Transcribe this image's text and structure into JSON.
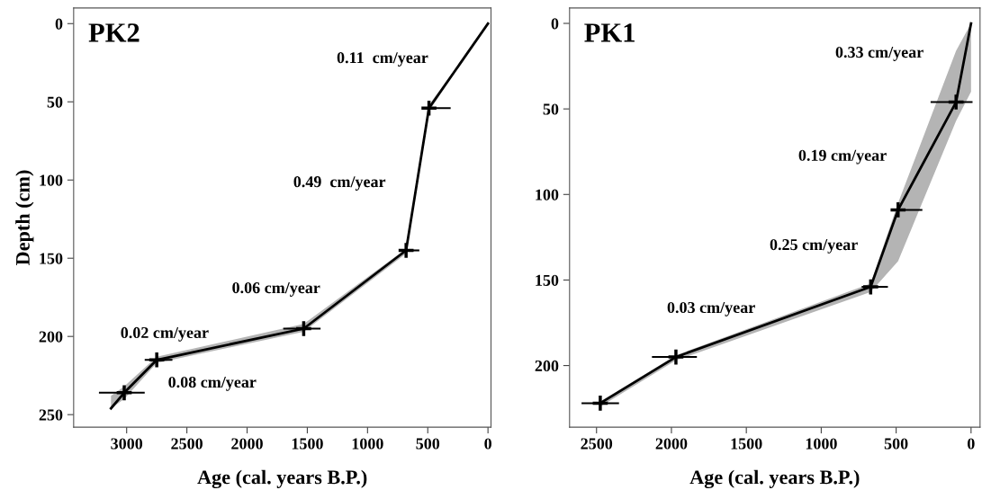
{
  "chart_data": [
    {
      "type": "line",
      "title": "PK2",
      "xlabel": "Age (cal. years B.P.)",
      "ylabel": "Depth (cm)",
      "xlim": [
        3440,
        -25
      ],
      "ylim": [
        258,
        -10
      ],
      "xticks": [
        3000,
        2500,
        2000,
        1500,
        1000,
        500,
        0
      ],
      "yticks": [
        0,
        50,
        100,
        150,
        200,
        250
      ],
      "grid": false,
      "legend": false,
      "marker": "cross",
      "line_style": "solid",
      "series": [
        {
          "color": "#000000",
          "x": [
            0,
            490,
            680,
            1530,
            2750,
            3020,
            3130
          ],
          "values": [
            0,
            54,
            145,
            195,
            215,
            236,
            246
          ],
          "xerrors": [
            null,
            [
              310,
              510
            ],
            [
              570,
              710
            ],
            [
              1390,
              1700
            ],
            [
              2620,
              2850
            ],
            [
              2850,
              3230
            ],
            null
          ],
          "lower": [
            0,
            52,
            144,
            192,
            213,
            232,
            238
          ],
          "upper": [
            0,
            56,
            147,
            197,
            217,
            240,
            246
          ]
        }
      ],
      "annotations": [
        "0.11  cm/year",
        "0.49  cm/year",
        "0.06 cm/year",
        "0.02 cm/year",
        "0.08 cm/year"
      ]
    },
    {
      "type": "line",
      "title": "PK1",
      "xlabel": "Age (cal. years B.P.)",
      "xlim": [
        2680,
        -60
      ],
      "ylim": [
        236,
        -9
      ],
      "xticks": [
        2500,
        2000,
        1500,
        1000,
        500,
        0
      ],
      "yticks": [
        0,
        50,
        100,
        150,
        200
      ],
      "grid": false,
      "legend": false,
      "marker": "cross",
      "line_style": "solid",
      "series": [
        {
          "color": "#000000",
          "x": [
            0,
            100,
            487,
            670,
            1970,
            2475
          ],
          "values": [
            0,
            46,
            109,
            154,
            195,
            222
          ],
          "xerrors": [
            null,
            [
              -10,
              270
            ],
            [
              325,
              515
            ],
            [
              555,
              730
            ],
            [
              1830,
              2130
            ],
            [
              2350,
              2600
            ]
          ],
          "lower": [
            0,
            16,
            105,
            152,
            194,
            221
          ],
          "upper": [
            40,
            57,
            139,
            157,
            197,
            224
          ]
        }
      ],
      "annotations": [
        "0.33 cm/year",
        "0.19 cm/year",
        "0.25 cm/year",
        "0.03 cm/year"
      ]
    }
  ]
}
